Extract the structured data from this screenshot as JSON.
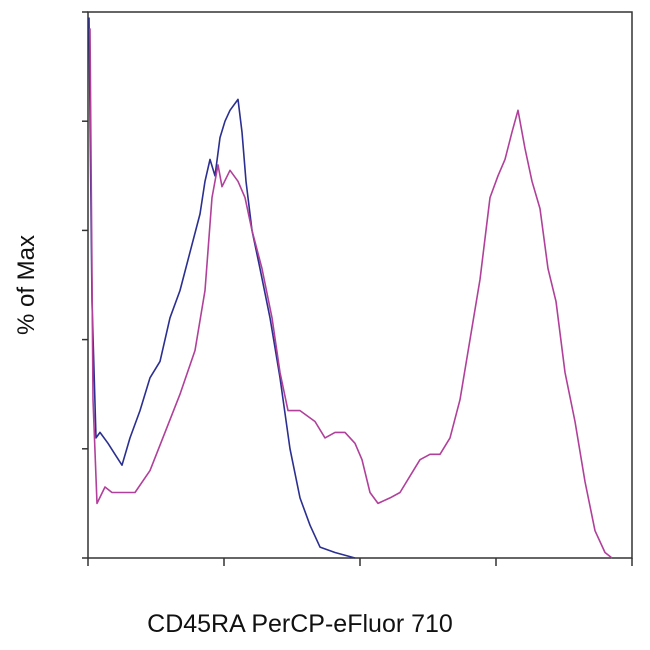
{
  "chart_data": {
    "type": "line",
    "y_label": "% of Max",
    "x_label": "CD45RA PerCP-eFluor 710",
    "xlim": [
      0,
      544
    ],
    "ylim": [
      0,
      100
    ],
    "xticks": [
      0,
      136,
      272,
      408,
      544
    ],
    "yticks": [
      0,
      20,
      40,
      60,
      80,
      100
    ],
    "series": [
      {
        "color": "#2b2f8f",
        "x": [
          1,
          4,
          8,
          12,
          20,
          27,
          34,
          42,
          52,
          62,
          72,
          82,
          92,
          102,
          112,
          117,
          122,
          127,
          132,
          137,
          142,
          150,
          154,
          158,
          164,
          172,
          182,
          192,
          202,
          212,
          222,
          232,
          247,
          267
        ],
        "values": [
          99,
          47,
          22,
          23,
          21,
          19,
          17,
          22,
          27,
          33,
          36,
          44,
          49,
          56,
          63,
          69,
          73,
          70,
          77,
          80,
          82,
          84,
          78,
          69,
          60,
          53,
          44,
          33,
          20,
          11,
          6,
          2,
          1,
          0
        ]
      },
      {
        "color": "#b0409a",
        "x": [
          2,
          5,
          9,
          17,
          24,
          32,
          47,
          62,
          77,
          92,
          107,
          117,
          124,
          130,
          134,
          142,
          150,
          157,
          164,
          174,
          184,
          192,
          200,
          212,
          227,
          237,
          247,
          257,
          267,
          274,
          282,
          290,
          302,
          312,
          322,
          332,
          342,
          352,
          362,
          372,
          382,
          392,
          402,
          410,
          417,
          424,
          430,
          437,
          444,
          452,
          460,
          468,
          477,
          487,
          497,
          507,
          517,
          524
        ],
        "values": [
          97,
          29,
          10,
          13,
          12,
          12,
          12,
          16,
          23,
          30,
          38,
          49,
          66,
          72,
          68,
          71,
          69,
          66,
          60,
          53,
          44,
          34,
          27,
          27,
          25,
          22,
          23,
          23,
          21,
          18,
          12,
          10,
          11,
          12,
          15,
          18,
          19,
          19,
          22,
          29,
          40,
          51,
          66,
          70,
          73,
          78,
          82,
          75,
          69,
          64,
          53,
          47,
          34,
          25,
          14,
          5,
          1,
          0
        ]
      }
    ]
  }
}
